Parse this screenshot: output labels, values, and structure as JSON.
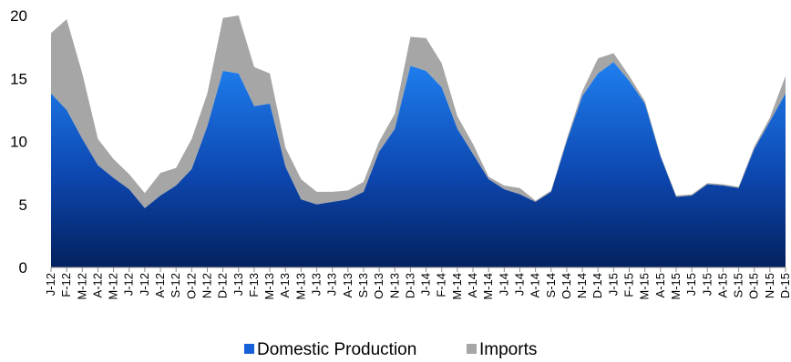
{
  "chart_data": {
    "type": "area",
    "stacked": true,
    "categories": [
      "J-12",
      "F-12",
      "M-12",
      "A-12",
      "M-12",
      "J-12",
      "J-12",
      "A-12",
      "S-12",
      "O-12",
      "N-12",
      "D-12",
      "J-13",
      "F-13",
      "M-13",
      "A-13",
      "M-13",
      "J-13",
      "J-13",
      "A-13",
      "S-13",
      "O-13",
      "N-13",
      "D-13",
      "J-14",
      "F-14",
      "M-14",
      "A-14",
      "M-14",
      "J-14",
      "J-14",
      "A-14",
      "S-14",
      "O-14",
      "N-14",
      "D-14",
      "J-15",
      "F-15",
      "M-15",
      "A-15",
      "M-15",
      "J-15",
      "J-15",
      "A-15",
      "S-15",
      "O-15",
      "N-15",
      "D-15"
    ],
    "series": [
      {
        "name": "Domestic Production",
        "color": "#1560d8",
        "values": [
          13.8,
          12.5,
          10.2,
          8.1,
          7.1,
          6.2,
          4.7,
          5.7,
          6.5,
          7.8,
          11.2,
          15.6,
          15.4,
          12.8,
          13.0,
          8.0,
          5.4,
          5.0,
          5.2,
          5.4,
          6.0,
          9.2,
          11.0,
          16.0,
          15.6,
          14.3,
          11.0,
          9.0,
          7.0,
          6.2,
          5.8,
          5.2,
          6.0,
          10.0,
          13.6,
          15.4,
          16.3,
          14.8,
          13.0,
          8.8,
          5.6,
          5.7,
          6.6,
          6.5,
          6.3,
          9.4,
          11.6,
          13.8
        ]
      },
      {
        "name": "Imports",
        "color": "#a6a6a6",
        "values": [
          4.8,
          7.2,
          5.2,
          2.1,
          1.5,
          1.2,
          1.2,
          1.8,
          1.4,
          2.4,
          2.6,
          4.2,
          4.6,
          3.1,
          2.4,
          1.5,
          1.6,
          1.0,
          0.8,
          0.7,
          0.8,
          0.8,
          1.2,
          2.3,
          2.6,
          1.9,
          1.0,
          0.8,
          0.2,
          0.3,
          0.5,
          0.1,
          0.1,
          0.2,
          0.4,
          1.2,
          0.7,
          0.4,
          0.2,
          0.1,
          0.1,
          0.1,
          0.1,
          0.1,
          0.1,
          0.2,
          0.3,
          1.4
        ]
      }
    ],
    "ylim": [
      0,
      20
    ],
    "yticks": [
      "0",
      "5",
      "10",
      "15",
      "20"
    ],
    "grid": false,
    "legend_position": "bottom"
  }
}
